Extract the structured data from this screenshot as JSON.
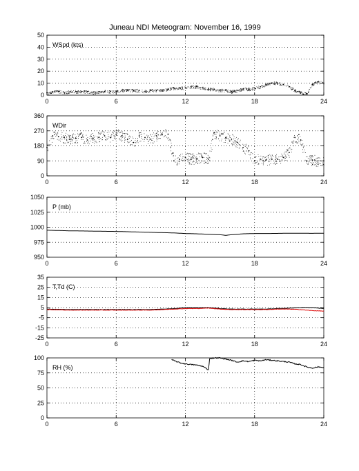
{
  "title": "Juneau NDI Meteogram:  November 16, 1999",
  "x_ticks": [
    "0",
    "6",
    "12",
    "18",
    "24"
  ],
  "chart_data": [
    {
      "type": "scatter",
      "label": "WSpd (kts)",
      "xlim": [
        0,
        24
      ],
      "ylim": [
        0,
        50
      ],
      "y_ticks": [
        "0",
        "10",
        "20",
        "30",
        "40",
        "50"
      ],
      "grid": true,
      "color": "#000000",
      "series": [
        {
          "x": [
            0,
            0.5,
            1,
            1.5,
            2,
            2.5,
            3,
            3.5,
            4,
            4.5,
            5,
            5.5,
            6,
            6.5,
            7,
            7.5,
            8,
            8.5,
            9,
            9.5,
            10,
            10.5,
            11,
            11.5,
            12,
            12.5,
            13,
            13.5,
            14,
            14.5,
            15,
            15.5,
            16,
            16.5,
            17,
            17.5,
            18,
            18.5,
            19,
            19.5,
            20,
            20.5,
            21,
            21.5,
            22,
            22.5,
            23,
            23.5,
            24
          ],
          "values": [
            2,
            3,
            3,
            2,
            3,
            3,
            3,
            3,
            2,
            3,
            3,
            3,
            3,
            4,
            4,
            4,
            4,
            3,
            4,
            4,
            4,
            5,
            6,
            6,
            6,
            7,
            7,
            6,
            5,
            5,
            4,
            4,
            3,
            4,
            5,
            5,
            6,
            7,
            9,
            10,
            10,
            9,
            7,
            4,
            2,
            1,
            9,
            11,
            10
          ]
        }
      ]
    },
    {
      "type": "scatter",
      "label": "WDir",
      "xlim": [
        0,
        24
      ],
      "ylim": [
        0,
        360
      ],
      "y_ticks": [
        "0",
        "90",
        "180",
        "270",
        "360"
      ],
      "grid": true,
      "color": "#000000",
      "series": [
        {
          "x": [
            0,
            0.5,
            1,
            1.5,
            2,
            2.5,
            3,
            3.5,
            4,
            4.5,
            5,
            5.5,
            6,
            6.5,
            7,
            7.5,
            8,
            8.5,
            9,
            9.5,
            10,
            10.5,
            11,
            11.5,
            12,
            12.5,
            13,
            13.5,
            14,
            14.5,
            15,
            15.5,
            16,
            16.5,
            17,
            17.5,
            18,
            18.5,
            19,
            19.5,
            20,
            20.5,
            21,
            21.5,
            22,
            22.5,
            23,
            23.5,
            24
          ],
          "values": [
            170,
            240,
            235,
            230,
            220,
            225,
            230,
            215,
            225,
            230,
            240,
            230,
            250,
            240,
            220,
            200,
            240,
            230,
            220,
            240,
            250,
            250,
            90,
            100,
            110,
            100,
            105,
            110,
            100,
            260,
            240,
            230,
            220,
            200,
            170,
            150,
            90,
            100,
            95,
            100,
            100,
            110,
            140,
            230,
            215,
            90,
            95,
            90,
            90
          ]
        }
      ]
    },
    {
      "type": "line",
      "label": "P (mb)",
      "xlim": [
        0,
        24
      ],
      "ylim": [
        950,
        1050
      ],
      "y_ticks": [
        "950",
        "975",
        "1000",
        "1025",
        "1050"
      ],
      "grid": true,
      "color": "#000000",
      "series": [
        {
          "x": [
            0,
            1,
            2,
            3,
            4,
            5,
            6,
            7,
            8,
            9,
            10,
            11,
            12,
            13,
            14,
            15,
            15.5,
            16,
            17,
            18,
            19,
            20,
            21,
            22,
            23,
            24
          ],
          "values": [
            995,
            994.5,
            994,
            993.8,
            993.5,
            993.2,
            993,
            992.5,
            992,
            991.5,
            991,
            990.5,
            989.5,
            989,
            988.3,
            987.5,
            986.5,
            987.5,
            989,
            989.5,
            989.5,
            989.7,
            990,
            989.9,
            989.8,
            990
          ]
        }
      ]
    },
    {
      "type": "line",
      "label": "T,Td (C)",
      "xlim": [
        0,
        24
      ],
      "ylim": [
        -25,
        35
      ],
      "y_ticks": [
        "-25",
        "-15",
        "-5",
        "5",
        "15",
        "25",
        "35"
      ],
      "grid": true,
      "series": [
        {
          "name": "T",
          "color": "#000000",
          "x": [
            0,
            1,
            2,
            3,
            4,
            5,
            6,
            7,
            8,
            9,
            10,
            11,
            12,
            13,
            14,
            15,
            16,
            17,
            18,
            19,
            20,
            21,
            22,
            23,
            24
          ],
          "values": [
            3.5,
            3.2,
            3,
            3,
            3,
            3,
            3,
            3,
            3,
            3,
            3.5,
            4,
            5,
            5,
            5,
            4,
            3.5,
            3.5,
            3.5,
            3.5,
            4,
            4.5,
            5,
            5,
            4
          ]
        },
        {
          "name": "Td",
          "color": "#dd0000",
          "x": [
            0,
            1,
            2,
            3,
            4,
            5,
            6,
            7,
            8,
            9,
            10,
            11,
            12,
            13,
            14,
            15,
            16,
            17,
            18,
            19,
            20,
            21,
            22,
            23,
            24
          ],
          "values": [
            3,
            2.8,
            2.5,
            2.5,
            2.5,
            2.5,
            2.5,
            2.5,
            2.5,
            2.5,
            3,
            3.5,
            4,
            4,
            4.5,
            3.5,
            3,
            3,
            3,
            3,
            3.5,
            3.5,
            3,
            2,
            1.5
          ]
        }
      ]
    },
    {
      "type": "line",
      "label": "RH (%)",
      "xlim": [
        0,
        24
      ],
      "ylim": [
        0,
        100
      ],
      "y_ticks": [
        "0",
        "25",
        "50",
        "75",
        "100"
      ],
      "grid": true,
      "color": "#000000",
      "series": [
        {
          "x": [
            10.8,
            11.5,
            12,
            12.5,
            13,
            13.5,
            14,
            14.1,
            14.5,
            15,
            15.5,
            16,
            16.5,
            17,
            17.5,
            18,
            18.5,
            19,
            19.5,
            20,
            20.5,
            21,
            21.5,
            22,
            22.5,
            23,
            23.5,
            24
          ],
          "values": [
            97,
            92,
            90,
            89,
            88,
            86,
            80,
            99,
            100,
            100,
            98,
            96,
            93,
            95,
            94,
            96,
            95,
            97,
            96,
            95,
            94,
            93,
            90,
            89,
            85,
            83,
            85,
            84
          ]
        }
      ]
    }
  ]
}
